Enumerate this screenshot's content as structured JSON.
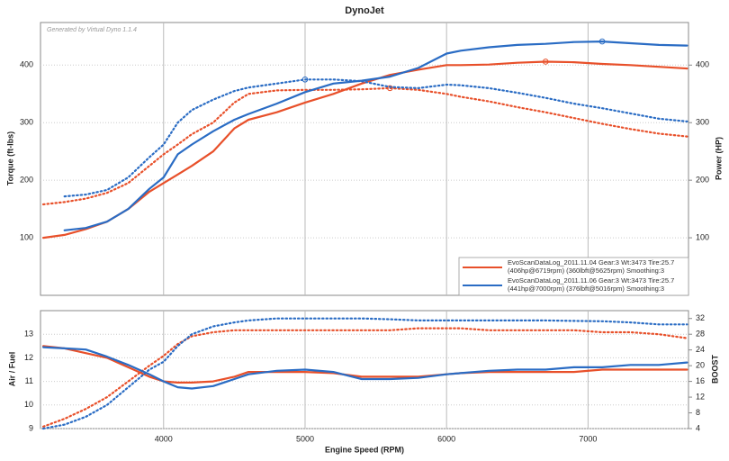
{
  "chart_data": [
    {
      "type": "line",
      "title": "DynoJet",
      "subtitle": "Generated by Virtual Dyno 1.1.4",
      "y_label": "Torque (ft-lbs)",
      "y2_label": "Power (HP)",
      "x": [
        3150,
        3300,
        3450,
        3600,
        3750,
        3900,
        4000,
        4100,
        4200,
        4350,
        4500,
        4600,
        4800,
        5000,
        5200,
        5400,
        5600,
        5800,
        6000,
        6100,
        6300,
        6500,
        6700,
        6900,
        7100,
        7300,
        7500,
        7700
      ],
      "xlim": [
        3130,
        7710
      ],
      "xticks": [
        4000,
        5000,
        6000,
        7000
      ],
      "ylim": [
        0,
        474
      ],
      "yticks": [
        100,
        200,
        300,
        400
      ],
      "y2lim": [
        0,
        474
      ],
      "y2ticks": [
        100,
        200,
        300,
        400
      ],
      "grid": true,
      "legend": "lower right",
      "series": [
        {
          "name": "EvoScanDataLog_2011.11.04 Gear:3 Wt:3473 Tire:25.7",
          "detail": "(406hp@6719rpm) (360lbft@5625rpm) Smoothing:3",
          "color": "#e8502a",
          "torque": [
            158,
            162,
            168,
            178,
            195,
            225,
            245,
            262,
            280,
            300,
            335,
            350,
            356,
            357,
            357,
            358,
            360,
            357,
            350,
            345,
            337,
            327,
            318,
            308,
            298,
            289,
            281,
            276
          ],
          "power": [
            100,
            105,
            115,
            128,
            150,
            180,
            195,
            210,
            225,
            250,
            290,
            305,
            318,
            335,
            350,
            368,
            383,
            392,
            400,
            400,
            401,
            404,
            406,
            405,
            402,
            400,
            397,
            394
          ]
        },
        {
          "name": "EvoScanDataLog_2011.11.06 Gear:3 Wt:3473 Tire:25.7",
          "detail": "(441hp@7000rpm) (376lbft@5016rpm) Smoothing:3",
          "color": "#2a6cc4",
          "torque": [
            null,
            172,
            175,
            183,
            205,
            240,
            262,
            300,
            322,
            340,
            355,
            361,
            368,
            375,
            375,
            372,
            362,
            360,
            366,
            365,
            360,
            352,
            343,
            333,
            325,
            316,
            307,
            302
          ],
          "power": [
            null,
            113,
            117,
            128,
            150,
            185,
            205,
            245,
            262,
            285,
            305,
            315,
            333,
            353,
            368,
            373,
            380,
            395,
            420,
            425,
            431,
            435,
            437,
            440,
            441,
            438,
            435,
            434
          ]
        }
      ]
    },
    {
      "type": "line",
      "x_label": "Engine Speed (RPM)",
      "y_label": "Air / Fuel",
      "y2_label": "BOOST",
      "x": [
        3150,
        3300,
        3450,
        3600,
        3750,
        3900,
        4000,
        4100,
        4200,
        4350,
        4500,
        4600,
        4800,
        5000,
        5200,
        5400,
        5600,
        5800,
        6000,
        6100,
        6300,
        6500,
        6700,
        6900,
        7100,
        7300,
        7500,
        7700
      ],
      "xlim": [
        3130,
        7710
      ],
      "xticks": [
        4000,
        5000,
        6000,
        7000
      ],
      "ylim": [
        9,
        14
      ],
      "yticks": [
        9,
        10,
        11,
        12,
        13
      ],
      "y2lim": [
        4,
        34
      ],
      "y2ticks": [
        4,
        8,
        12,
        16,
        20,
        24,
        28,
        32
      ],
      "grid": true,
      "series": [
        {
          "color": "#e8502a",
          "afr": [
            12.5,
            12.4,
            12.2,
            12.0,
            11.6,
            11.2,
            11.0,
            10.95,
            10.95,
            11.0,
            11.2,
            11.4,
            11.4,
            11.4,
            11.35,
            11.2,
            11.2,
            11.2,
            11.3,
            11.35,
            11.4,
            11.4,
            11.4,
            11.4,
            11.5,
            11.5,
            11.5,
            11.5
          ],
          "boost": [
            4.5,
            6.5,
            9,
            12,
            16,
            20,
            22.5,
            25.5,
            27.5,
            28.5,
            29,
            29,
            29,
            29,
            29,
            29,
            29,
            29.5,
            29.5,
            29.5,
            29,
            29,
            29,
            29,
            28.5,
            28.5,
            28,
            27
          ]
        },
        {
          "color": "#2a6cc4",
          "afr": [
            12.45,
            12.4,
            12.35,
            12.05,
            11.7,
            11.3,
            11.0,
            10.75,
            10.7,
            10.8,
            11.1,
            11.3,
            11.45,
            11.5,
            11.4,
            11.1,
            11.1,
            11.15,
            11.3,
            11.35,
            11.45,
            11.5,
            11.5,
            11.6,
            11.6,
            11.7,
            11.7,
            11.8
          ],
          "boost": [
            4,
            5,
            7,
            10,
            14.5,
            19,
            21,
            25,
            28,
            30,
            31,
            31.5,
            32,
            32,
            32,
            32,
            31.8,
            31.5,
            31.5,
            31.5,
            31.5,
            31.5,
            31.5,
            31.4,
            31.3,
            31,
            30.5,
            30.5
          ]
        }
      ]
    }
  ]
}
